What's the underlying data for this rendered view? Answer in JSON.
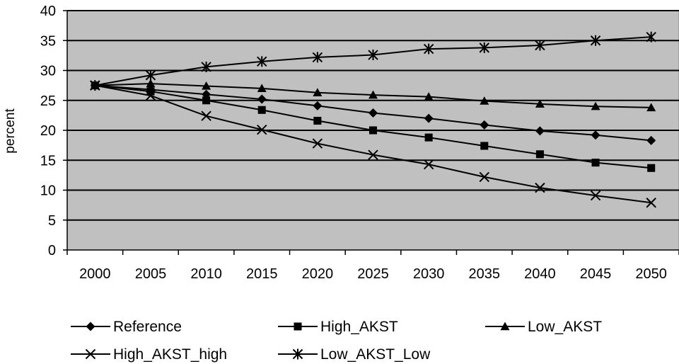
{
  "chart_data": {
    "type": "line",
    "title": "",
    "xlabel": "",
    "ylabel": "percent",
    "ylim": [
      0,
      40
    ],
    "ytick_step": 5,
    "grid": "horizontal",
    "legend_position": "bottom",
    "plot_background": "#c0c0c0",
    "line_color": "#000000",
    "categories": [
      "2000",
      "2005",
      "2010",
      "2015",
      "2020",
      "2025",
      "2030",
      "2035",
      "2040",
      "2045",
      "2050"
    ],
    "series": [
      {
        "name": "Reference",
        "marker": "diamond",
        "values": [
          27.5,
          26.8,
          26.0,
          25.2,
          24.1,
          22.9,
          22.0,
          20.9,
          19.9,
          19.2,
          18.3
        ]
      },
      {
        "name": "High_AKST",
        "marker": "square",
        "values": [
          27.5,
          26.5,
          25.0,
          23.4,
          21.6,
          20.0,
          18.8,
          17.4,
          16.0,
          14.6,
          13.7
        ]
      },
      {
        "name": "Low_AKST",
        "marker": "triangle",
        "values": [
          27.5,
          27.8,
          27.4,
          27.0,
          26.3,
          25.9,
          25.6,
          24.9,
          24.4,
          24.0,
          23.8
        ]
      },
      {
        "name": "High_AKST_high",
        "marker": "x",
        "values": [
          27.5,
          25.8,
          22.4,
          20.1,
          17.8,
          15.9,
          14.3,
          12.2,
          10.4,
          9.1,
          7.9
        ]
      },
      {
        "name": "Low_AKST_Low",
        "marker": "asterisk",
        "values": [
          27.5,
          29.2,
          30.6,
          31.5,
          32.2,
          32.6,
          33.6,
          33.8,
          34.2,
          35.0,
          35.6
        ]
      }
    ]
  }
}
